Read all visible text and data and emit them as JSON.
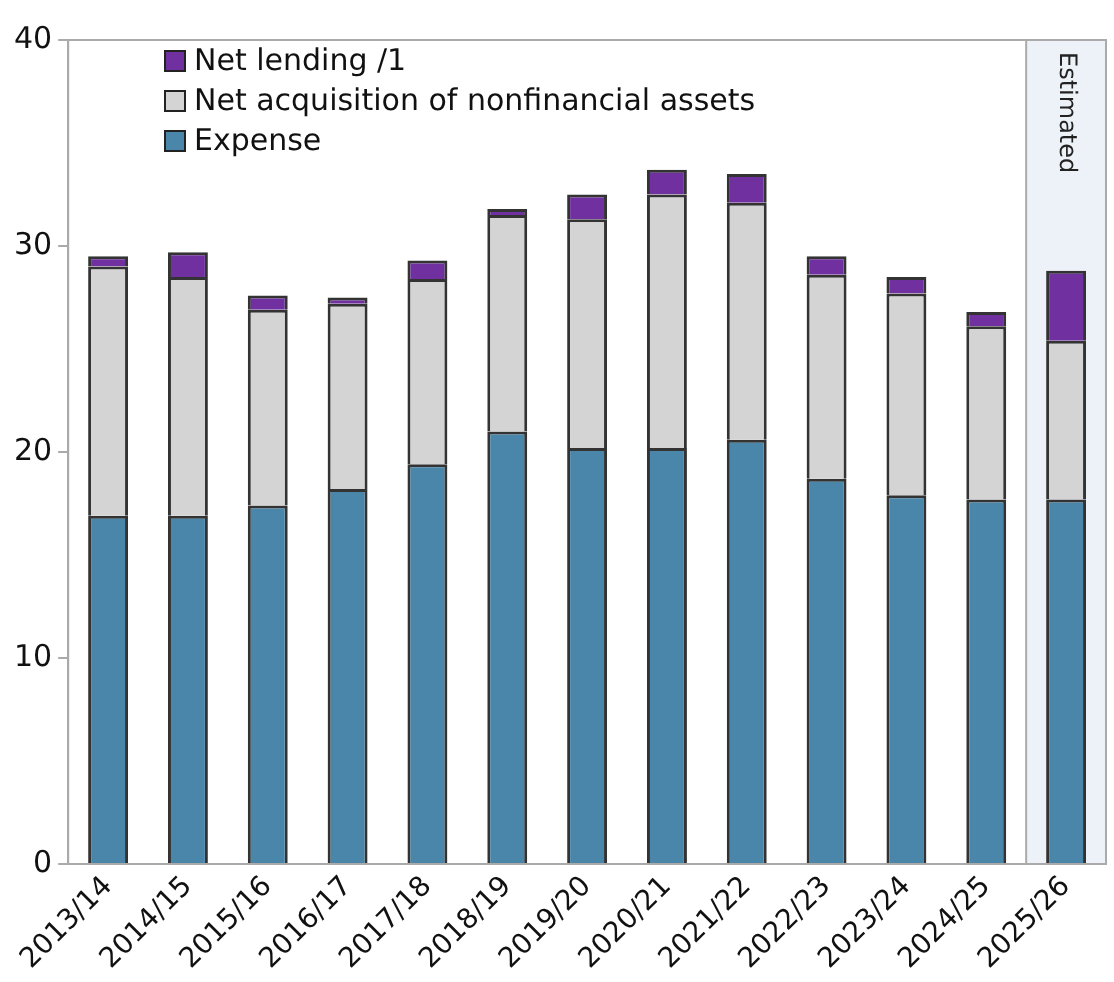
{
  "chart_data": {
    "type": "bar",
    "stacked": true,
    "categories": [
      "2013/14",
      "2014/15",
      "2015/16",
      "2016/17",
      "2017/18",
      "2018/19",
      "2019/20",
      "2020/21",
      "2021/22",
      "2022/23",
      "2023/24",
      "2024/25",
      "2025/26"
    ],
    "series": [
      {
        "name": "Expense",
        "color": "#4a86aa",
        "values": [
          16.9,
          16.9,
          17.4,
          18.2,
          19.4,
          21.0,
          20.2,
          20.2,
          20.6,
          18.7,
          17.9,
          17.7,
          17.7
        ]
      },
      {
        "name": "Net acquisition of nonfinancial assets",
        "color": "#d4d4d4",
        "values": [
          12.1,
          11.6,
          9.5,
          9.0,
          9.0,
          10.5,
          11.1,
          12.3,
          11.5,
          9.9,
          9.8,
          8.4,
          7.7
        ]
      },
      {
        "name": "Net lending /1",
        "color": "#7030a0",
        "values": [
          0.5,
          1.2,
          0.7,
          0.3,
          0.9,
          0.3,
          1.2,
          1.2,
          1.4,
          0.9,
          0.8,
          0.7,
          3.4
        ]
      }
    ],
    "ylim": [
      0,
      40
    ],
    "yticks": [
      0,
      10,
      20,
      30,
      40
    ],
    "grid": false,
    "legend": "top left",
    "bands": [
      {
        "axis": "x",
        "from": "2025/26",
        "to": "2025/26",
        "label": "Estimated",
        "color": "#edf1f8"
      }
    ]
  }
}
